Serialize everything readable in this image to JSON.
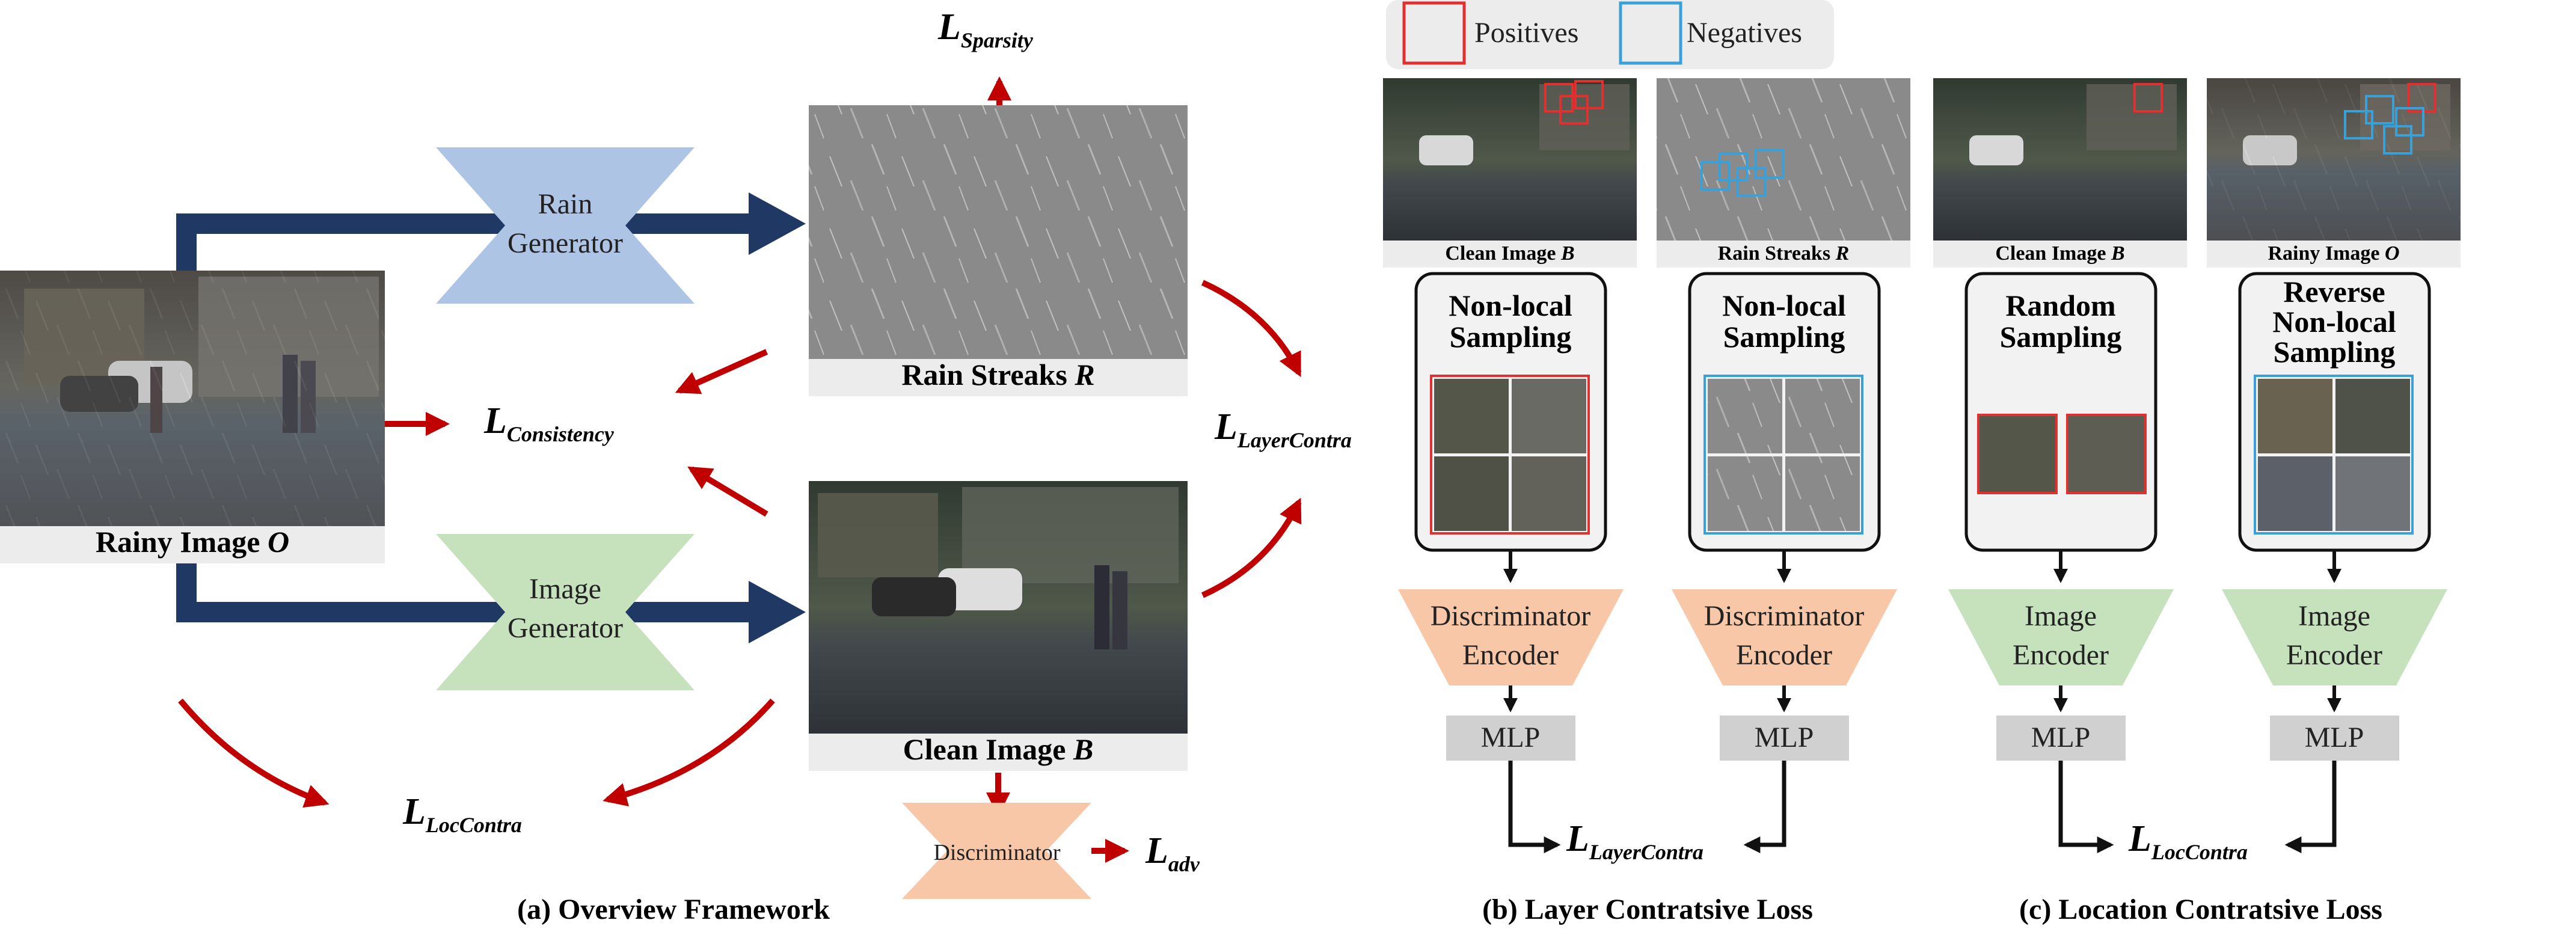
{
  "panel_a": {
    "caption": "(a) Overview Framework",
    "rainy_image_label": "Rainy Image",
    "rainy_image_symbol": "O",
    "rain_generator_line1": "Rain",
    "rain_generator_line2": "Generator",
    "image_generator_line1": "Image",
    "image_generator_line2": "Generator",
    "rain_streaks_label": "Rain Streaks",
    "rain_streaks_symbol": "R",
    "clean_image_label": "Clean Image",
    "clean_image_symbol": "B",
    "discriminator_label": "Discriminator",
    "loss_sparsity_base": "L",
    "loss_sparsity_sub": "Sparsity",
    "loss_consistency_base": "L",
    "loss_consistency_sub": "Consistency",
    "loss_layercontra_base": "L",
    "loss_layercontra_sub": "LayerContra",
    "loss_loccontra_base": "L",
    "loss_loccontra_sub": "LocContra",
    "loss_adv_base": "L",
    "loss_adv_sub": "adv"
  },
  "legend": {
    "positives": "Positives",
    "negatives": "Negatives"
  },
  "panel_b": {
    "caption": "(b) Layer Contratsive Loss",
    "col1_image_label": "Clean Image",
    "col1_image_symbol": "B",
    "col1_sampling_line1": "Non-local",
    "col1_sampling_line2": "Sampling",
    "col1_encoder_line1": "Discriminator",
    "col1_encoder_line2": "Encoder",
    "col1_mlp": "MLP",
    "col2_image_label": "Rain Streaks",
    "col2_image_symbol": "R",
    "col2_sampling_line1": "Non-local",
    "col2_sampling_line2": "Sampling",
    "col2_encoder_line1": "Discriminator",
    "col2_encoder_line2": "Encoder",
    "col2_mlp": "MLP",
    "loss_base": "L",
    "loss_sub": "LayerContra"
  },
  "panel_c": {
    "caption": "(c) Location Contratsive Loss",
    "col1_image_label": "Clean Image",
    "col1_image_symbol": "B",
    "col1_sampling_line1": "Random",
    "col1_sampling_line2": "Sampling",
    "col1_encoder_line1": "Image",
    "col1_encoder_line2": "Encoder",
    "col1_mlp": "MLP",
    "col2_image_label": "Rainy Image",
    "col2_image_symbol": "O",
    "col2_sampling_line1": "Reverse",
    "col2_sampling_line2": "Non-local",
    "col2_sampling_line3": "Sampling",
    "col2_encoder_line1": "Image",
    "col2_encoder_line2": "Encoder",
    "col2_mlp": "MLP",
    "loss_base": "L",
    "loss_sub": "LocContra"
  },
  "colors": {
    "navy_arrow": "#1f3864",
    "red_arrow": "#c00000",
    "rain_gen_fill": "#aec4e5",
    "image_gen_fill": "#c6e2bd",
    "disc_fill": "#f8c7a8",
    "encoder_green": "#c6e2bd",
    "encoder_orange": "#f8c7a8",
    "mlp_fill": "#d0d0d0",
    "positive_box": "#e03030",
    "negative_box": "#3aa0d8",
    "label_bg": "#ececec"
  }
}
